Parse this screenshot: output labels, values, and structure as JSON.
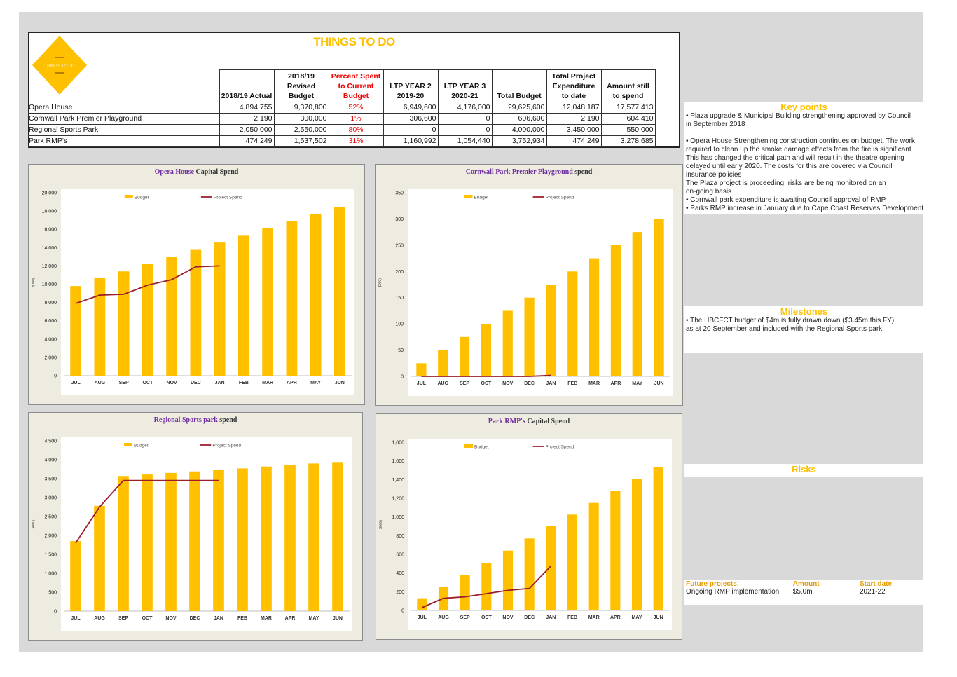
{
  "header": {
    "title": "THINGS TO DO",
    "logo_text": "THINGS TO DO"
  },
  "table": {
    "columns": [
      "2018/19 Actual",
      "2018/19 Revised Budget",
      "Percent Spent to Current Budget",
      "LTP YEAR 2 2019-20",
      "LTP YEAR 3 2020-21",
      "Total Budget",
      "Total Project Expenditure to date",
      "Amount still to spend"
    ],
    "rows": [
      [
        "Opera House",
        "4,894,755",
        "9,370,800",
        "52%",
        "6,949,600",
        "4,176,000",
        "29,625,600",
        "12,048,187",
        "17,577,413"
      ],
      [
        "Cornwall Park Premier Playground",
        "2,190",
        "300,000",
        "1%",
        "306,600",
        "0",
        "606,600",
        "2,190",
        "604,410"
      ],
      [
        "Regional Sports Park",
        "2,050,000",
        "2,550,000",
        "80%",
        "0",
        "0",
        "4,000,000",
        "3,450,000",
        "550,000"
      ],
      [
        "Park RMP's",
        "474,249",
        "1,537,502",
        "31%",
        "1,160,992",
        "1,054,440",
        "3,752,934",
        "474,249",
        "3,278,685"
      ]
    ]
  },
  "chart_data": [
    {
      "type": "bar",
      "title": [
        "Opera House",
        "Capital Spend"
      ],
      "title_colors": [
        "#7030a0",
        "#333333"
      ],
      "ylabel": "$000)",
      "categories": [
        "JUL",
        "AUG",
        "SEP",
        "OCT",
        "NOV",
        "DEC",
        "JAN",
        "FEB",
        "MAR",
        "APR",
        "MAY",
        "JUN"
      ],
      "series": [
        {
          "name": "Budget",
          "type": "bar",
          "color": "#ffc000",
          "values": [
            9800,
            10650,
            11400,
            12200,
            13000,
            13750,
            14550,
            15300,
            16100,
            16900,
            17700,
            18450
          ]
        },
        {
          "name": "Project Spend",
          "type": "line",
          "color": "#9b1c2c",
          "values": [
            7900,
            8800,
            8900,
            9900,
            10500,
            11900,
            12000,
            null,
            null,
            null,
            null,
            null
          ]
        }
      ],
      "ylim": [
        0,
        20000
      ],
      "yticks": [
        0,
        {
          "value": 2000,
          "label": "2,000"
        },
        {
          "value": 4000,
          "label": "4,000"
        },
        {
          "value": 6000,
          "label": "6,000"
        },
        {
          "value": 8000,
          "label": "8,000"
        },
        {
          "value": 10000,
          "label": "10,000"
        },
        {
          "value": 12000,
          "label": "12,000"
        },
        {
          "value": 14000,
          "label": "14,000"
        },
        {
          "value": 16000,
          "label": "16,000"
        },
        {
          "value": 18000,
          "label": "18,000"
        },
        {
          "value": 20000,
          "label": "20,000"
        }
      ]
    },
    {
      "type": "bar",
      "title": [
        "Cornwall Park Premier Playground",
        "spend"
      ],
      "title_colors": [
        "#7030a0",
        "#333333"
      ],
      "ylabel": "$000)",
      "categories": [
        "JUL",
        "AUG",
        "SEP",
        "OCT",
        "NOV",
        "DEC",
        "JAN",
        "FEB",
        "MAR",
        "APR",
        "MAY",
        "JUN"
      ],
      "series": [
        {
          "name": "Budget",
          "type": "bar",
          "color": "#ffc000",
          "values": [
            25,
            50,
            75,
            100,
            125,
            150,
            175,
            200,
            225,
            250,
            275,
            300
          ]
        },
        {
          "name": "Project Spend",
          "type": "line",
          "color": "#9b1c2c",
          "values": [
            0,
            0,
            0,
            0,
            0,
            0,
            2,
            null,
            null,
            null,
            null,
            null
          ]
        }
      ],
      "ylim": [
        0,
        350
      ],
      "yticks": [
        0,
        50,
        100,
        150,
        200,
        250,
        300,
        350
      ]
    },
    {
      "type": "bar",
      "title": [
        "Regional Sports park",
        "spend"
      ],
      "title_colors": [
        "#7030a0",
        "#333333"
      ],
      "ylabel": "$000)",
      "categories": [
        "JUL",
        "AUG",
        "SEP",
        "OCT",
        "NOV",
        "DEC",
        "JAN",
        "FEB",
        "MAR",
        "APR",
        "MAY",
        "JUN"
      ],
      "series": [
        {
          "name": "Budget",
          "type": "bar",
          "color": "#ffc000",
          "values": [
            1850,
            2780,
            3570,
            3610,
            3650,
            3690,
            3730,
            3770,
            3820,
            3860,
            3900,
            3940
          ]
        },
        {
          "name": "Project Spend",
          "type": "line",
          "color": "#9b1c2c",
          "values": [
            1800,
            2750,
            3450,
            3450,
            3450,
            3450,
            3450,
            null,
            null,
            null,
            null,
            null
          ]
        }
      ],
      "ylim": [
        0,
        4500
      ],
      "yticks": [
        0,
        500,
        {
          "value": 1000,
          "label": "1,000"
        },
        {
          "value": 1500,
          "label": "1,500"
        },
        {
          "value": 2000,
          "label": "2,000"
        },
        {
          "value": 2500,
          "label": "2,500"
        },
        {
          "value": 3000,
          "label": "3,000"
        },
        {
          "value": 3500,
          "label": "3,500"
        },
        {
          "value": 4000,
          "label": "4,000"
        },
        {
          "value": 4500,
          "label": "4,500"
        }
      ]
    },
    {
      "type": "bar",
      "title": [
        "Park RMP's",
        "Capital Spend"
      ],
      "title_colors": [
        "#7030a0",
        "#333333"
      ],
      "ylabel": "$000)",
      "categories": [
        "JUL",
        "AUG",
        "SEP",
        "OCT",
        "NOV",
        "DEC",
        "JAN",
        "FEB",
        "MAR",
        "APR",
        "MAY",
        "JUN"
      ],
      "series": [
        {
          "name": "Budget",
          "type": "bar",
          "color": "#ffc000",
          "values": [
            130,
            255,
            380,
            510,
            640,
            770,
            900,
            1025,
            1150,
            1280,
            1410,
            1535
          ]
        },
        {
          "name": "Project Spend",
          "type": "line",
          "color": "#9b1c2c",
          "values": [
            30,
            130,
            145,
            180,
            215,
            235,
            474,
            null,
            null,
            null,
            null,
            null
          ]
        }
      ],
      "ylim": [
        0,
        1800
      ],
      "yticks": [
        0,
        200,
        400,
        600,
        800,
        {
          "value": 1000,
          "label": "1,000"
        },
        {
          "value": 1200,
          "label": "1,200"
        },
        {
          "value": 1400,
          "label": "1,400"
        },
        {
          "value": 1600,
          "label": "1,600"
        },
        {
          "value": 1800,
          "label": "1,800"
        }
      ]
    }
  ],
  "key_points": {
    "heading": "Key points",
    "paragraphs": [
      [
        "• Plaza upgrade & Municipal Building strengthening approved by Council",
        " in September 2018"
      ],
      [
        "• Opera House Strengthening construction continues on budget. The work",
        "required to clean up the smoke damage effects from the fire is significant.",
        "This has changed the critical path and will result in the theatre opening",
        "delayed until early 2020. The costs for this are covered via Council",
        "insurance policies",
        "The Plaza project is proceeding, risks are being monitored on an",
        "on-going basis.",
        "• Cornwall park expenditure is awaiting Council approval of RMP.",
        "• Parks RMP increase in January due to Cape Coast Reserves Development"
      ]
    ]
  },
  "milestones": {
    "heading": "Milestones",
    "paragraphs": [
      [
        "• The HBCFCT budget of $4m is fully drawn down ($3.45m this FY)",
        "as at 20 September and included with the Regional Sports park."
      ]
    ]
  },
  "risks": {
    "heading": "Risks"
  },
  "future_projects": {
    "columns": [
      "Future projects:",
      "Amount",
      "Start date"
    ],
    "rows": [
      [
        "Ongoing RMP implementation",
        "$5.0m",
        "2021-22"
      ]
    ]
  }
}
